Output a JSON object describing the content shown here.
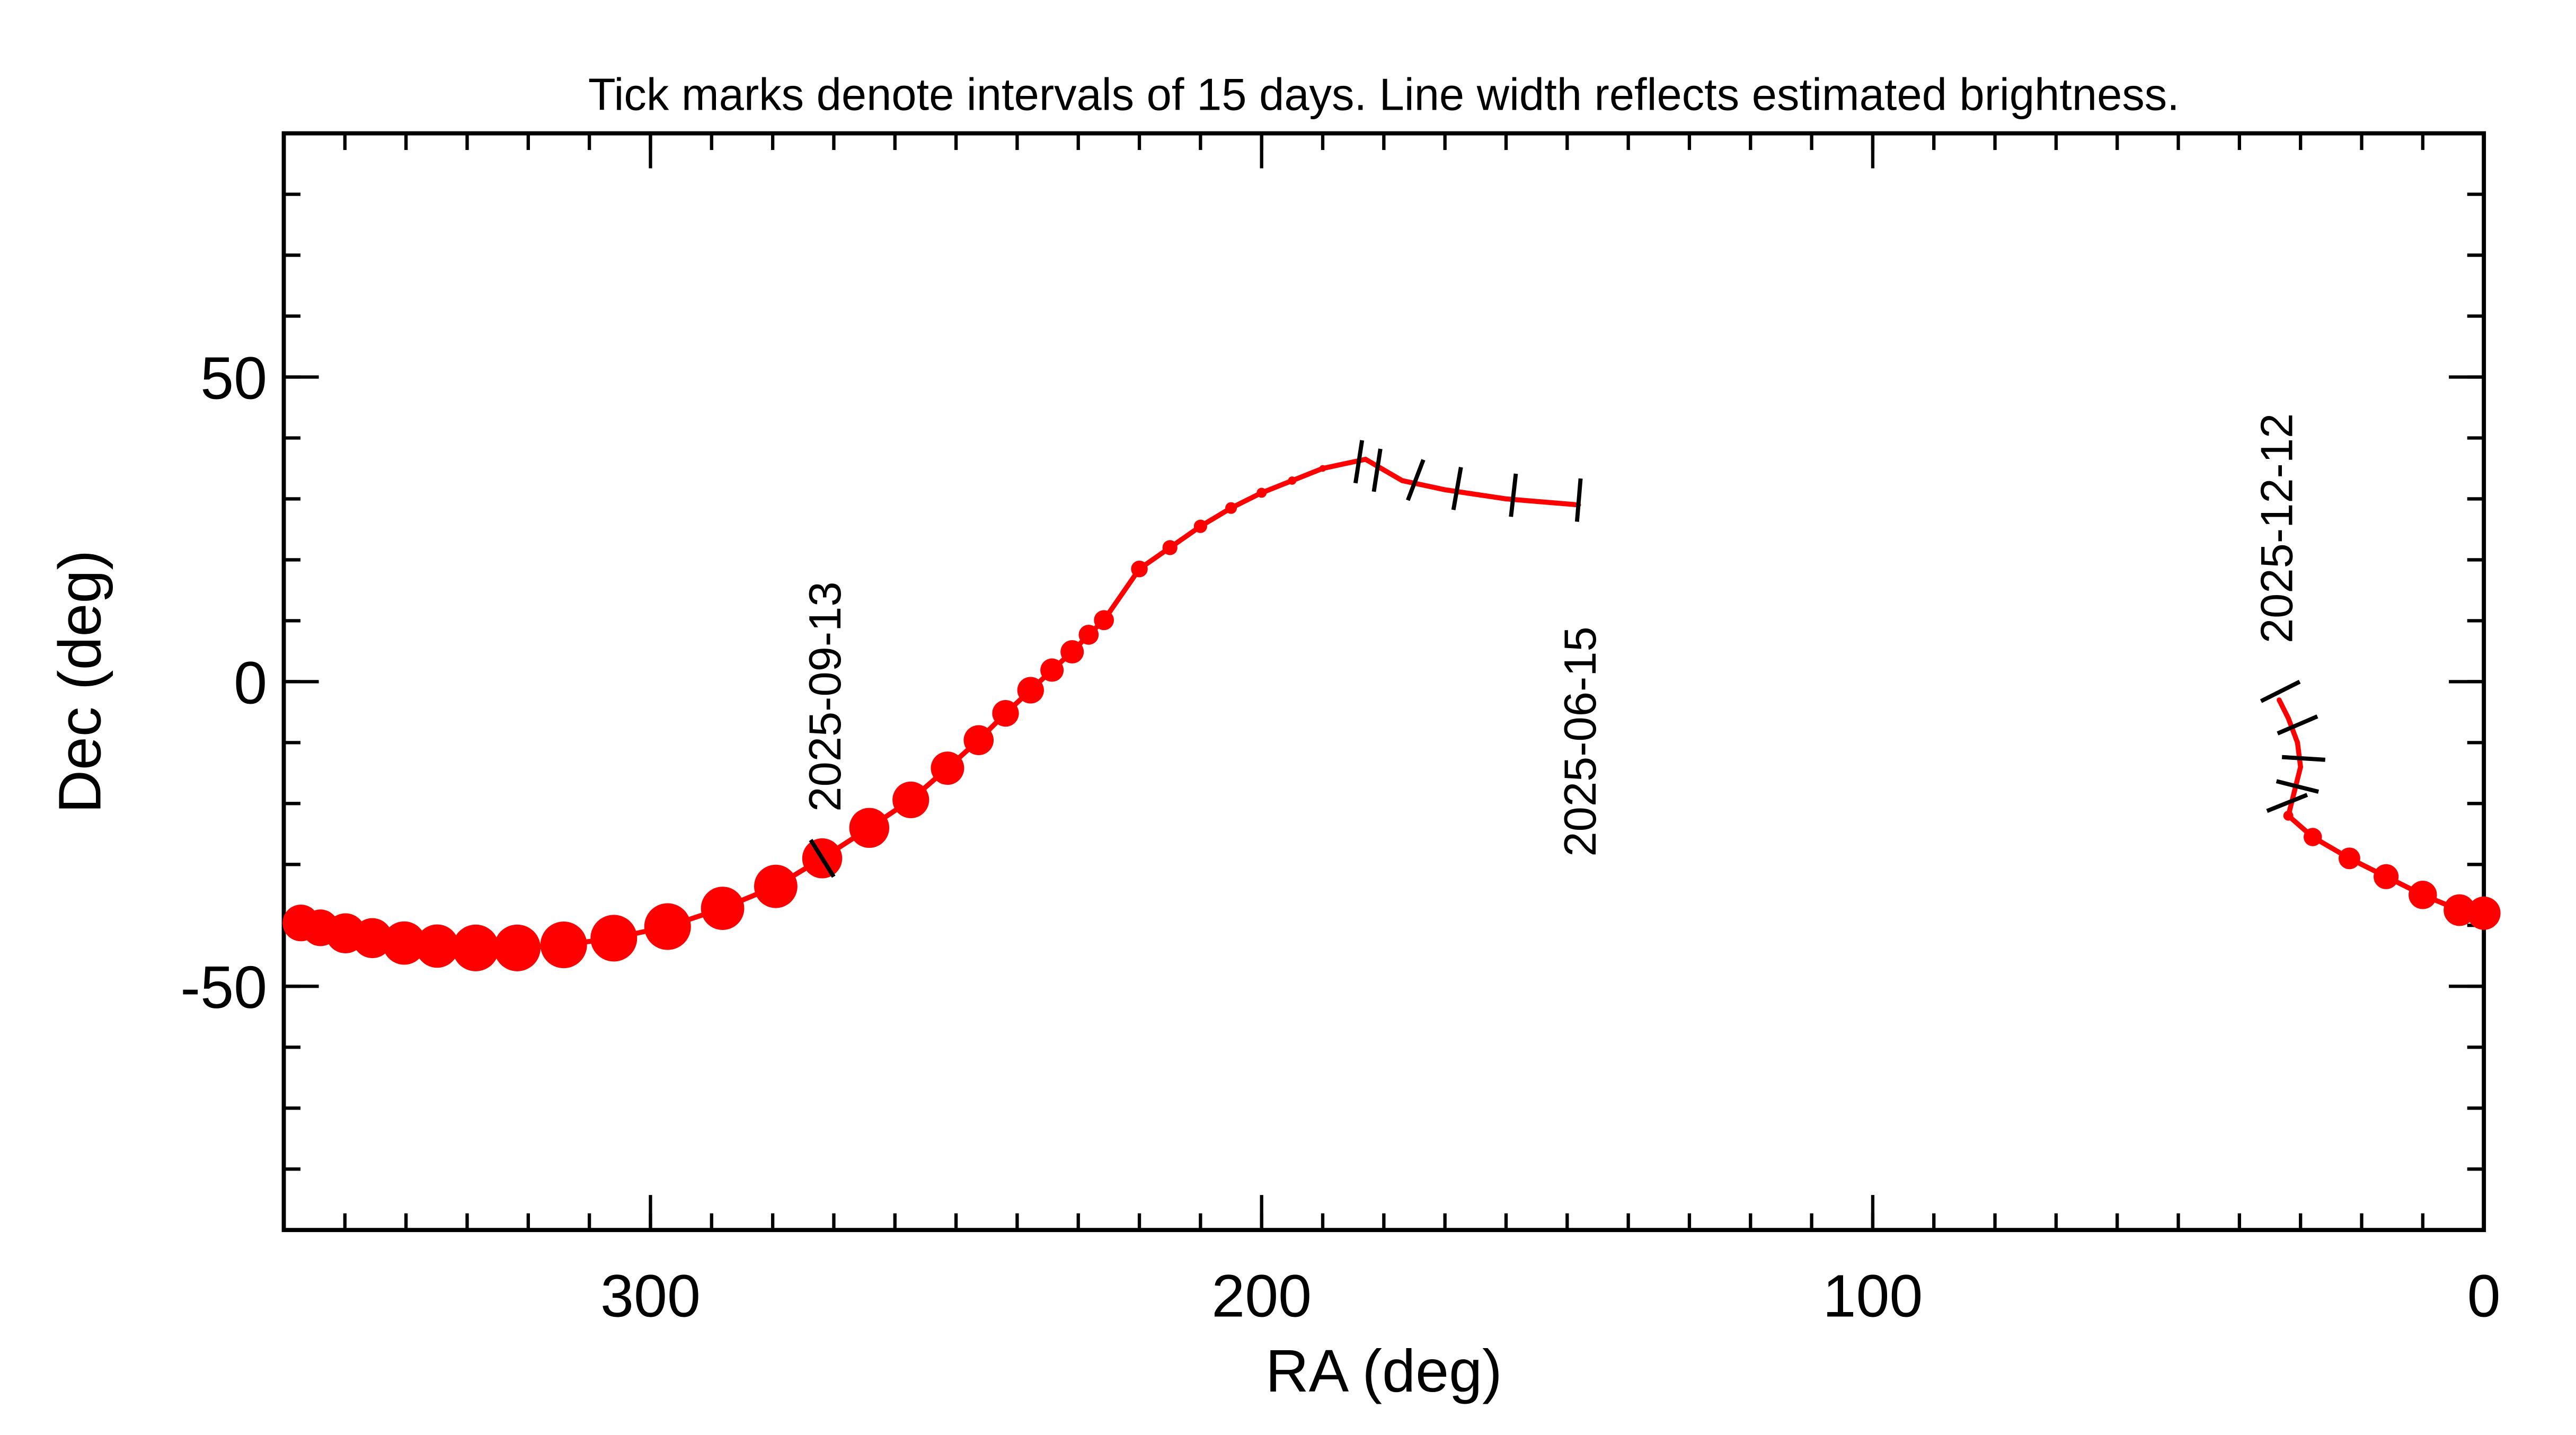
{
  "chart_data": {
    "type": "track",
    "title": "Tick marks denote intervals of 15 days.  Line width reflects estimated brightness.",
    "x_label": "RA (deg)",
    "y_label": "Dec (deg)",
    "xlim": [
      360,
      0
    ],
    "ylim": [
      -90,
      90
    ],
    "xticks": [
      300,
      200,
      100,
      0
    ],
    "yticks": [
      -50,
      0,
      50
    ],
    "xticks_minor": [
      0,
      10,
      20,
      30,
      40,
      50,
      60,
      70,
      80,
      90,
      100,
      110,
      120,
      130,
      140,
      150,
      160,
      170,
      180,
      190,
      200,
      210,
      220,
      230,
      240,
      250,
      260,
      270,
      280,
      290,
      300,
      310,
      320,
      330,
      340,
      350,
      360
    ],
    "yticks_minor": [
      -90,
      -80,
      -70,
      -60,
      -50,
      -40,
      -30,
      -20,
      -10,
      0,
      10,
      20,
      30,
      40,
      50,
      60,
      70,
      80,
      90
    ],
    "color": "#ff0000",
    "tick_color": "#000000",
    "series": [
      {
        "x": [
          148,
          160,
          170,
          177,
          183,
          190,
          195,
          200,
          205,
          210,
          215,
          220,
          225.8,
          228.3,
          231.0,
          234.3,
          237.8,
          241.9,
          246.3,
          251.4,
          257.4,
          264.2,
          271.9,
          279.5,
          288.2,
          297.2,
          306.0,
          314.2,
          321.8,
          328.6,
          334.9,
          340.3,
          345.5,
          349.9,
          354.0,
          357.2,
          null,
          0,
          4,
          10,
          16,
          22,
          28,
          32,
          31,
          30,
          30.5,
          32,
          33.5
        ],
        "y": [
          29,
          30,
          31.5,
          33,
          36.5,
          35,
          33,
          31,
          28.5,
          25.5,
          22,
          18.5,
          10.1,
          7.7,
          4.9,
          1.9,
          -1.4,
          -5.2,
          -9.6,
          -14.2,
          -19.4,
          -24.0,
          -29.0,
          -33.6,
          -37.2,
          -40.2,
          -42.1,
          -43.2,
          -43.7,
          -43.7,
          -43.4,
          -42.9,
          -42.1,
          -41.3,
          -40.4,
          -39.6,
          null,
          -38,
          -37.5,
          -35,
          -32,
          -29,
          -25.5,
          -22,
          -18,
          -14,
          -10,
          -6,
          -3
        ],
        "sizes": [
          2,
          2,
          2,
          2,
          3,
          4,
          5,
          6,
          7,
          8,
          9,
          10,
          12,
          12,
          14,
          14,
          16,
          16,
          18,
          20,
          22,
          24,
          24,
          26,
          26,
          28,
          28,
          28,
          28,
          28,
          26,
          26,
          24,
          24,
          22,
          22,
          null,
          20,
          19,
          17,
          15,
          13,
          11,
          6,
          3,
          3,
          3,
          3,
          3
        ]
      }
    ],
    "interval_ticks": {
      "x": [
        148.1,
        158.8,
        168.0,
        174.8,
        181.1,
        184.1,
        271.9,
        33.3,
        30.5,
        29.5,
        30.5,
        32.2
      ],
      "y": [
        29.8,
        30.6,
        31.7,
        33.1,
        34.7,
        36.1,
        -29.0,
        -1.6,
        -7.1,
        -12.6,
        -17.2,
        -19.9
      ]
    },
    "annotations": [
      "2025-06-15",
      "2025-09-13",
      "2025-12-12"
    ]
  }
}
